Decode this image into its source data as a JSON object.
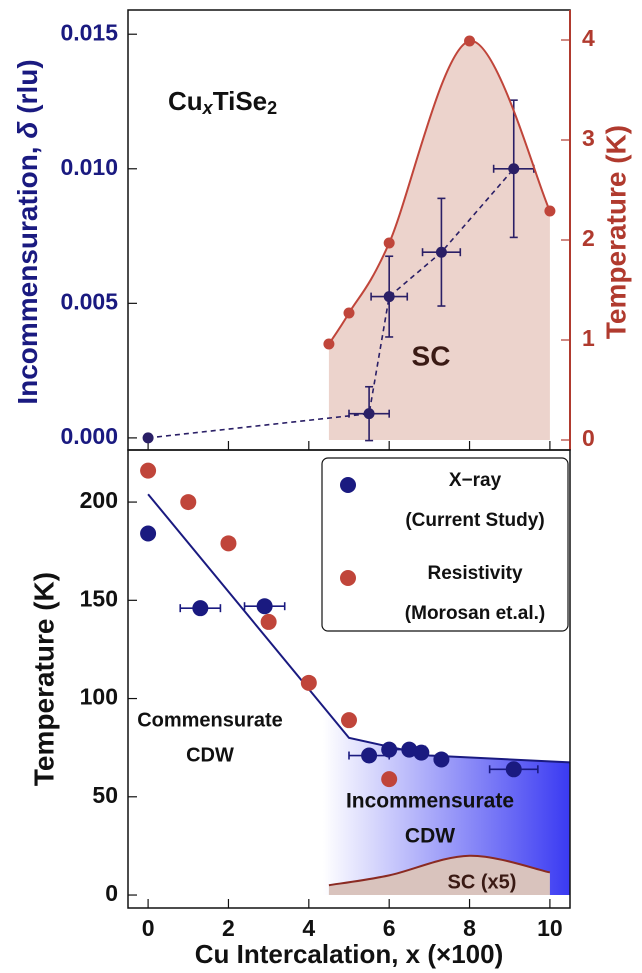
{
  "chart_data": [
    {
      "type": "scatter",
      "ylabel_parts": [
        "Incommensuration, ",
        "δ",
        " (rlu)"
      ],
      "y2label": "Temperature (K)",
      "formula_parts": [
        "Cu",
        "x",
        "TiSe",
        "2"
      ],
      "annotation": "SC",
      "xlim": [
        -0.5,
        10.5
      ],
      "ylim": [
        -0.00045,
        0.0159
      ],
      "yticks": [
        {
          "value": 0,
          "label": "0.000"
        },
        {
          "value": 0.005,
          "label": "0.005"
        },
        {
          "value": 0.01,
          "label": "0.010"
        },
        {
          "value": 0.015,
          "label": "0.015"
        }
      ],
      "y2lim": [
        -0.1,
        4.3
      ],
      "y2ticks": [
        0,
        1,
        2,
        3,
        4
      ],
      "left_axis_color": "#1a1a80",
      "right_axis_color": "#b03a2e",
      "series": [
        {
          "color": "#2a1f66",
          "line": "dashed",
          "x": [
            0,
            5.5,
            6,
            7.3,
            9.1
          ],
          "values": [
            0.0,
            0.0009,
            0.00525,
            0.0069,
            0.01
          ],
          "yerr": [
            null,
            0.001,
            0.0015,
            0.002,
            0.00255
          ],
          "xerr": [
            null,
            0.5,
            0.45,
            0.47,
            0.5
          ]
        },
        {
          "axis": "y2",
          "color": "#c0453a",
          "fill": "#ecd3cc",
          "line": "smooth",
          "x": [
            4.5,
            5,
            6,
            8,
            10
          ],
          "values": [
            0.96,
            1.27,
            1.97,
            3.99,
            2.29
          ]
        }
      ]
    },
    {
      "type": "scatter",
      "xlabel": "Cu Intercalation, x (×100)",
      "ylabel": "Temperature (K)",
      "xlim": [
        -0.5,
        10.5
      ],
      "xticks": [
        0,
        2,
        4,
        6,
        8,
        10
      ],
      "ylim": [
        -6.6,
        226.5
      ],
      "yticks": [
        0,
        50,
        100,
        150,
        200
      ],
      "annotations": [
        [
          "Commensurate",
          "CDW"
        ],
        [
          "Incommensurate",
          "CDW"
        ],
        [
          "SC (x5)"
        ]
      ],
      "series": [
        {
          "name": "X−ray",
          "name_line2": "(Current Study)",
          "color": "#1a1a80",
          "x": [
            0,
            1.3,
            2.9,
            5.5,
            6,
            6.5,
            6.8,
            7.3,
            9.1
          ],
          "values": [
            184,
            146,
            147,
            71,
            74,
            74,
            72.5,
            69,
            64
          ],
          "xerr": [
            null,
            0.5,
            0.5,
            0.5,
            null,
            0.4,
            null,
            null,
            0.6
          ]
        },
        {
          "name": "Resistivity",
          "name_line2": "(Morosan et.al.)",
          "color": "#c0453a",
          "x": [
            0,
            1,
            2,
            3,
            4,
            5,
            6
          ],
          "values": [
            216,
            200,
            179,
            139,
            108,
            89,
            59
          ]
        }
      ],
      "cdw_line": {
        "color": "#1a1a80",
        "x": [
          0,
          5,
          7,
          10.5
        ],
        "values": [
          204,
          80,
          71,
          67.5
        ]
      },
      "sc_boundary": {
        "color": "#8a2a22",
        "fill": "#d9c3bd",
        "x": [
          4.5,
          6,
          8,
          10
        ],
        "values": [
          5,
          10,
          20,
          11.5
        ]
      }
    }
  ]
}
